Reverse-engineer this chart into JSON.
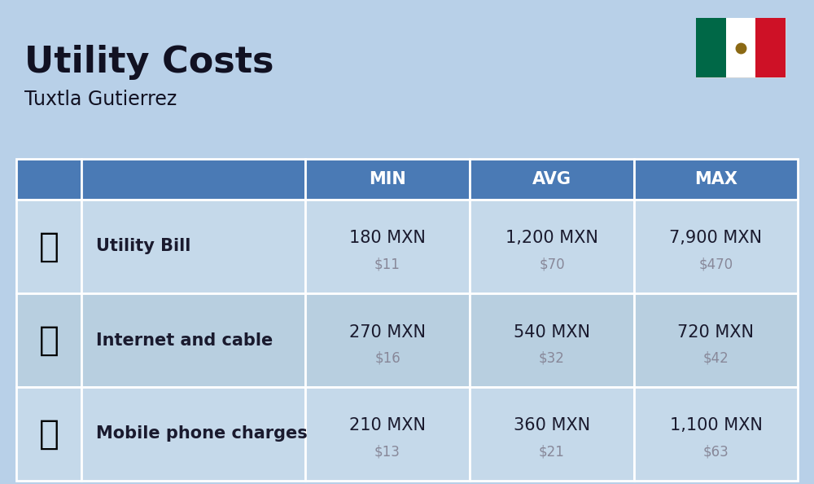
{
  "title": "Utility Costs",
  "subtitle": "Tuxtla Gutierrez",
  "background_color": "#b8d0e8",
  "header_bg_color": "#4a7ab5",
  "header_text_color": "#ffffff",
  "row_bg_even": "#c5d9ea",
  "row_bg_odd": "#b8cfe0",
  "table_border_color": "#ffffff",
  "rows": [
    {
      "label": "Utility Bill",
      "min_mxn": "180 MXN",
      "min_usd": "$11",
      "avg_mxn": "1,200 MXN",
      "avg_usd": "$70",
      "max_mxn": "7,900 MXN",
      "max_usd": "$470"
    },
    {
      "label": "Internet and cable",
      "min_mxn": "270 MXN",
      "min_usd": "$16",
      "avg_mxn": "540 MXN",
      "avg_usd": "$32",
      "max_mxn": "720 MXN",
      "max_usd": "$42"
    },
    {
      "label": "Mobile phone charges",
      "min_mxn": "210 MXN",
      "min_usd": "$13",
      "avg_mxn": "360 MXN",
      "avg_usd": "$21",
      "max_mxn": "1,100 MXN",
      "max_usd": "$63"
    }
  ],
  "main_value_color": "#1a1a2e",
  "sub_value_color": "#888899",
  "label_color": "#1a1a2e",
  "title_color": "#111122",
  "subtitle_color": "#111122",
  "flag_green": "#006847",
  "flag_white": "#FFFFFF",
  "flag_red": "#CE1126"
}
